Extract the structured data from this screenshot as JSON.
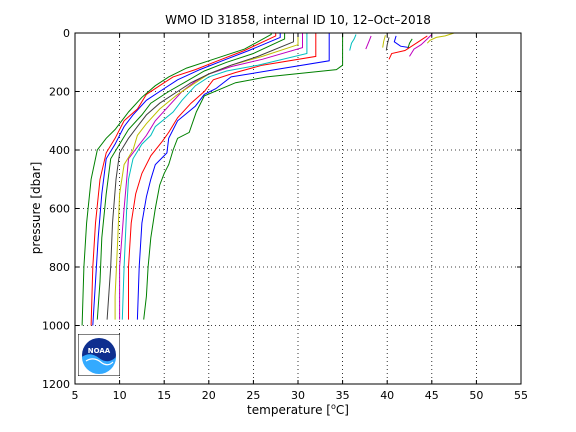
{
  "chart_data": {
    "type": "line",
    "title": "WMO ID 31858, internal ID 10, 12–Oct–2018",
    "xlabel_pre": "temperature [",
    "xlabel_sup": "o",
    "xlabel_post": "C]",
    "ylabel": "pressure [dbar]",
    "xlim": [
      5,
      55
    ],
    "ylim": [
      0,
      1200
    ],
    "y_reversed": true,
    "grid": true,
    "xticks": [
      5,
      10,
      15,
      20,
      25,
      30,
      35,
      40,
      45,
      50,
      55
    ],
    "yticks": [
      0,
      200,
      400,
      600,
      800,
      1000,
      1200
    ],
    "logo_text": "NOAA",
    "series": [
      {
        "color": "#008000",
        "points": [
          [
            35.0,
            0
          ],
          [
            35.0,
            110
          ],
          [
            34.3,
            125
          ],
          [
            26.5,
            150
          ],
          [
            23.0,
            170
          ],
          [
            19.5,
            215
          ],
          [
            18.6,
            270
          ],
          [
            17.8,
            340
          ],
          [
            16.5,
            360
          ],
          [
            16.0,
            400
          ],
          [
            15.5,
            450
          ],
          [
            15.0,
            480
          ],
          [
            14.5,
            520
          ],
          [
            14.0,
            600
          ],
          [
            13.5,
            700
          ],
          [
            13.2,
            800
          ],
          [
            13.0,
            900
          ],
          [
            12.7,
            980
          ]
        ]
      },
      {
        "color": "#0000ff",
        "points": [
          [
            33.5,
            0
          ],
          [
            33.5,
            95
          ],
          [
            26.5,
            130
          ],
          [
            22.5,
            150
          ],
          [
            20.8,
            190
          ],
          [
            19.5,
            210
          ],
          [
            18.5,
            250
          ],
          [
            16.5,
            300
          ],
          [
            15.5,
            360
          ],
          [
            15.3,
            410
          ],
          [
            14.0,
            450
          ],
          [
            13.5,
            500
          ],
          [
            13.0,
            560
          ],
          [
            12.5,
            650
          ],
          [
            12.2,
            800
          ],
          [
            12.0,
            980
          ]
        ]
      },
      {
        "color": "#ff0000",
        "points": [
          [
            32.0,
            0
          ],
          [
            32.0,
            80
          ],
          [
            26.0,
            110
          ],
          [
            23.0,
            135
          ],
          [
            20.5,
            160
          ],
          [
            19.5,
            200
          ],
          [
            18.0,
            240
          ],
          [
            16.5,
            290
          ],
          [
            15.5,
            340
          ],
          [
            14.8,
            370
          ],
          [
            13.5,
            420
          ],
          [
            12.5,
            480
          ],
          [
            11.8,
            550
          ],
          [
            11.3,
            650
          ],
          [
            11.0,
            800
          ],
          [
            11.0,
            980
          ]
        ]
      },
      {
        "color": "#00bfbf",
        "points": [
          [
            31.0,
            0
          ],
          [
            31.0,
            70
          ],
          [
            25.5,
            110
          ],
          [
            22.0,
            130
          ],
          [
            20.0,
            150
          ],
          [
            18.5,
            180
          ],
          [
            17.0,
            230
          ],
          [
            16.0,
            270
          ],
          [
            14.0,
            320
          ],
          [
            13.5,
            350
          ],
          [
            12.5,
            380
          ],
          [
            11.5,
            430
          ],
          [
            11.0,
            500
          ],
          [
            10.8,
            600
          ],
          [
            10.5,
            800
          ],
          [
            10.3,
            980
          ]
        ]
      },
      {
        "color": "#bf00bf",
        "points": [
          [
            30.5,
            0
          ],
          [
            30.5,
            50
          ],
          [
            26.0,
            90
          ],
          [
            22.5,
            115
          ],
          [
            20.0,
            140
          ],
          [
            18.5,
            165
          ],
          [
            17.0,
            200
          ],
          [
            15.5,
            250
          ],
          [
            14.0,
            300
          ],
          [
            13.0,
            350
          ],
          [
            12.0,
            390
          ],
          [
            11.0,
            430
          ],
          [
            10.8,
            500
          ],
          [
            10.5,
            600
          ],
          [
            10.0,
            800
          ],
          [
            10.0,
            980
          ]
        ]
      },
      {
        "color": "#bfbf00",
        "points": [
          [
            30.0,
            0
          ],
          [
            30.0,
            40
          ],
          [
            26.0,
            80
          ],
          [
            22.5,
            110
          ],
          [
            20.0,
            140
          ],
          [
            18.0,
            180
          ],
          [
            16.5,
            210
          ],
          [
            14.5,
            260
          ],
          [
            13.0,
            310
          ],
          [
            12.0,
            350
          ],
          [
            11.5,
            400
          ],
          [
            10.5,
            450
          ],
          [
            10.0,
            550
          ],
          [
            9.8,
            700
          ],
          [
            9.5,
            900
          ],
          [
            9.5,
            980
          ]
        ]
      },
      {
        "color": "#404040",
        "points": [
          [
            29.5,
            0
          ],
          [
            29.5,
            30
          ],
          [
            25.5,
            80
          ],
          [
            22.5,
            110
          ],
          [
            20.0,
            140
          ],
          [
            18.0,
            170
          ],
          [
            16.5,
            200
          ],
          [
            14.5,
            240
          ],
          [
            13.0,
            280
          ],
          [
            12.0,
            320
          ],
          [
            11.0,
            360
          ],
          [
            10.0,
            410
          ],
          [
            9.6,
            500
          ],
          [
            9.2,
            650
          ],
          [
            9.0,
            800
          ],
          [
            8.6,
            980
          ]
        ]
      },
      {
        "color": "#008000",
        "points": [
          [
            28.5,
            0
          ],
          [
            28.5,
            20
          ],
          [
            25.0,
            70
          ],
          [
            22.0,
            100
          ],
          [
            19.5,
            130
          ],
          [
            17.5,
            165
          ],
          [
            15.5,
            200
          ],
          [
            13.5,
            240
          ],
          [
            12.5,
            280
          ],
          [
            11.0,
            330
          ],
          [
            10.0,
            380
          ],
          [
            9.0,
            430
          ],
          [
            8.5,
            550
          ],
          [
            8.0,
            700
          ],
          [
            7.8,
            850
          ],
          [
            7.5,
            980
          ]
        ]
      },
      {
        "color": "#0000ff",
        "points": [
          [
            28.0,
            0
          ],
          [
            28.0,
            15
          ],
          [
            24.5,
            60
          ],
          [
            21.5,
            95
          ],
          [
            19.0,
            125
          ],
          [
            16.5,
            160
          ],
          [
            14.5,
            200
          ],
          [
            13.0,
            230
          ],
          [
            11.5,
            280
          ],
          [
            10.5,
            320
          ],
          [
            9.5,
            380
          ],
          [
            8.5,
            430
          ],
          [
            8.0,
            550
          ],
          [
            7.6,
            700
          ],
          [
            7.3,
            850
          ],
          [
            7.0,
            1000
          ]
        ]
      },
      {
        "color": "#ff0000",
        "points": [
          [
            27.5,
            0
          ],
          [
            27.5,
            10
          ],
          [
            24.0,
            60
          ],
          [
            21.0,
            95
          ],
          [
            18.5,
            125
          ],
          [
            16.0,
            150
          ],
          [
            15.0,
            170
          ],
          [
            13.0,
            210
          ],
          [
            12.0,
            260
          ],
          [
            10.5,
            300
          ],
          [
            9.5,
            360
          ],
          [
            8.5,
            410
          ],
          [
            7.8,
            500
          ],
          [
            7.3,
            650
          ],
          [
            7.0,
            800
          ],
          [
            6.8,
            1000
          ]
        ]
      },
      {
        "color": "#008000",
        "points": [
          [
            27.0,
            0
          ],
          [
            27.0,
            5
          ],
          [
            24.0,
            55
          ],
          [
            20.5,
            90
          ],
          [
            17.5,
            120
          ],
          [
            15.5,
            150
          ],
          [
            14.0,
            180
          ],
          [
            12.5,
            220
          ],
          [
            11.0,
            270
          ],
          [
            9.5,
            330
          ],
          [
            8.5,
            360
          ],
          [
            7.5,
            400
          ],
          [
            6.8,
            500
          ],
          [
            6.3,
            650
          ],
          [
            6.0,
            800
          ],
          [
            5.8,
            1000
          ]
        ]
      },
      {
        "color": "#00bfbf",
        "points": [
          [
            36.5,
            5
          ],
          [
            36.3,
            20
          ],
          [
            36.0,
            35
          ],
          [
            35.8,
            60
          ]
        ]
      },
      {
        "color": "#bf00bf",
        "points": [
          [
            38.2,
            10
          ],
          [
            38.0,
            25
          ],
          [
            37.8,
            40
          ],
          [
            37.6,
            55
          ]
        ]
      },
      {
        "color": "#bfbf00",
        "points": [
          [
            39.8,
            8
          ],
          [
            39.6,
            30
          ],
          [
            39.5,
            50
          ]
        ]
      },
      {
        "color": "#404040",
        "points": [
          [
            40.2,
            15
          ],
          [
            40.0,
            40
          ],
          [
            39.9,
            60
          ]
        ]
      },
      {
        "color": "#0000ff",
        "points": [
          [
            41.0,
            10
          ],
          [
            40.8,
            30
          ],
          [
            41.5,
            45
          ],
          [
            42.5,
            50
          ]
        ]
      },
      {
        "color": "#008000",
        "points": [
          [
            42.8,
            20
          ],
          [
            42.5,
            35
          ],
          [
            42.3,
            55
          ]
        ]
      },
      {
        "color": "#ff0000",
        "points": [
          [
            44.5,
            10
          ],
          [
            43.5,
            30
          ],
          [
            42.0,
            60
          ],
          [
            40.5,
            70
          ],
          [
            40.2,
            90
          ]
        ]
      },
      {
        "color": "#bf00bf",
        "points": [
          [
            45.0,
            5
          ],
          [
            44.5,
            20
          ],
          [
            43.8,
            40
          ],
          [
            43.0,
            55
          ],
          [
            42.5,
            80
          ]
        ]
      },
      {
        "color": "#bfbf00",
        "points": [
          [
            47.5,
            0
          ],
          [
            46.5,
            10
          ],
          [
            45.5,
            15
          ],
          [
            44.8,
            25
          ],
          [
            44.5,
            35
          ]
        ]
      }
    ]
  }
}
